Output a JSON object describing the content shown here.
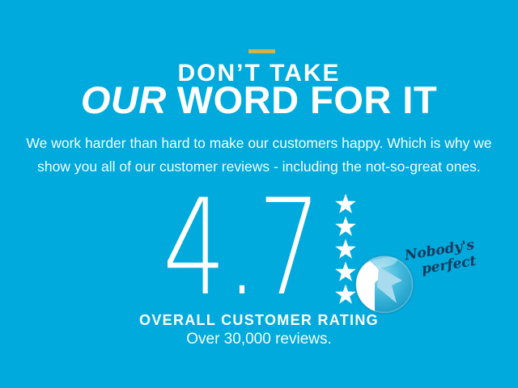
{
  "colors": {
    "background": "#00aadc",
    "accent_dash": "#d3b347",
    "text_primary": "#ffffff",
    "annotation_ink": "#17395c",
    "star_fill": "#ffffff",
    "magnified_unfilled": "#a9dbee"
  },
  "header": {
    "eyebrow": "DON’T TAKE",
    "title_emphasis": "OUR",
    "title_rest": "WORD FOR IT",
    "subtitle_lines": [
      "We work harder than hard to make our customers happy. Which is why we",
      "show you all of our customer reviews - including the not-so-great ones."
    ]
  },
  "rating": {
    "score": "4.7",
    "max_stars": 5,
    "label": "OVERALL CUSTOMER RATING",
    "reviews_note": "Over 30,000 reviews.",
    "annotation_lines": [
      "Nobody's",
      "perfect"
    ]
  }
}
